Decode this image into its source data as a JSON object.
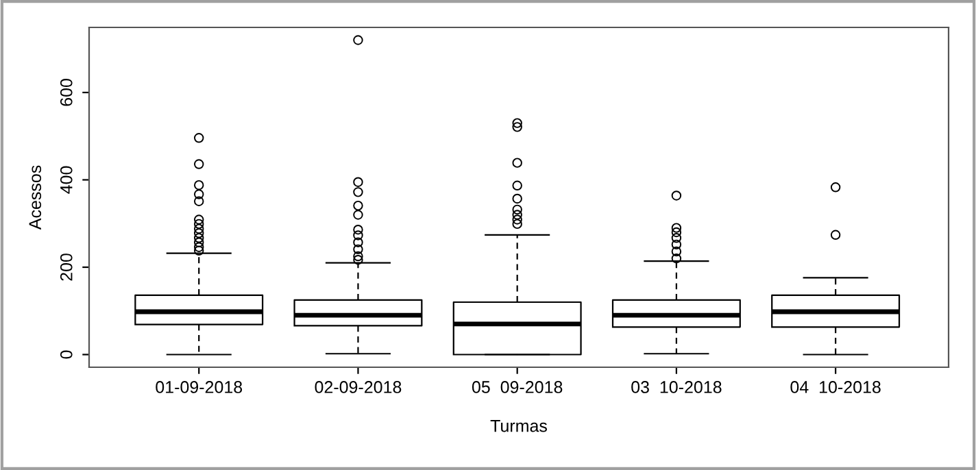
{
  "chart_data": {
    "type": "box",
    "xlabel": "Turmas",
    "ylabel": "Acessos",
    "categories": [
      "01-09-2018",
      "02-09-2018",
      "05  09-2018",
      "03  10-2018",
      "04  10-2018"
    ],
    "boxes": [
      {
        "low": 0,
        "q1": 69,
        "median": 98,
        "q3": 136,
        "high": 232,
        "outliers": [
          496,
          436,
          388,
          367,
          351,
          309,
          299,
          288,
          278,
          267,
          257,
          246,
          238
        ]
      },
      {
        "low": 2,
        "q1": 66,
        "median": 90,
        "q3": 125,
        "high": 210,
        "outliers": [
          720,
          395,
          372,
          341,
          320,
          286,
          273,
          257,
          241,
          225,
          217
        ]
      },
      {
        "low": 0,
        "q1": 0,
        "median": 70,
        "q3": 120,
        "high": 274,
        "outliers": [
          530,
          521,
          439,
          387,
          357,
          332,
          320,
          309,
          299
        ]
      },
      {
        "low": 2,
        "q1": 63,
        "median": 90,
        "q3": 125,
        "high": 214,
        "outliers": [
          364,
          290,
          280,
          267,
          252,
          236,
          220
        ]
      },
      {
        "low": 0,
        "q1": 63,
        "median": 98,
        "q3": 136,
        "high": 176,
        "outliers": [
          383,
          274
        ]
      }
    ],
    "ylim": [
      -29,
      749
    ],
    "yticks": [
      0,
      200,
      400,
      600
    ],
    "grid": false
  }
}
